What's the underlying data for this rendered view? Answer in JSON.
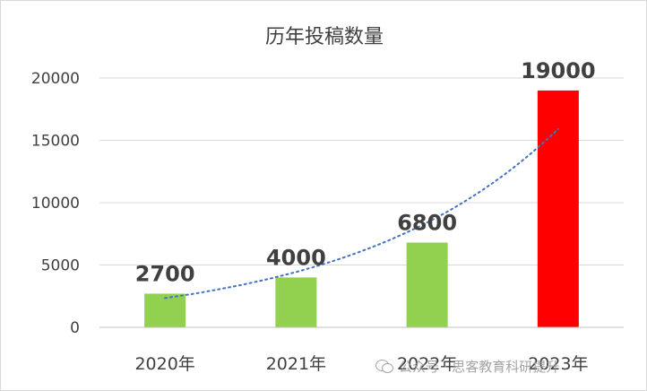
{
  "chart_data": {
    "type": "bar",
    "title": "历年投稿数量",
    "categories": [
      "2020年",
      "2021年",
      "2022年",
      "2023年"
    ],
    "values": [
      2700,
      4000,
      6800,
      19000
    ],
    "data_labels": [
      "2700",
      "4000",
      "6800",
      "19000"
    ],
    "bar_colors": [
      "#92d050",
      "#92d050",
      "#92d050",
      "#ff0000"
    ],
    "ylim": [
      0,
      20000
    ],
    "yticks": [
      0,
      5000,
      10000,
      15000,
      20000
    ],
    "ytick_labels": [
      "0",
      "5000",
      "10000",
      "15000",
      "20000"
    ],
    "grid": true,
    "trendline": {
      "type": "exponential",
      "color": "#4472c4",
      "style": "dotted"
    },
    "xlabel": "",
    "ylabel": ""
  },
  "watermark": {
    "text": "公众号 · 思客教育科研提升",
    "icon": "wechat-icon"
  }
}
